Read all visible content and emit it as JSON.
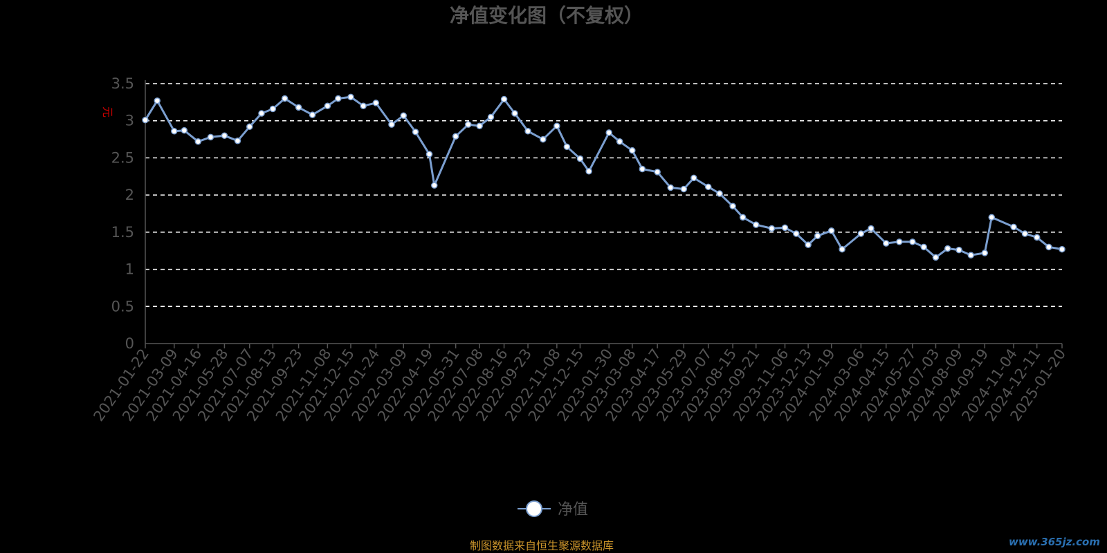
{
  "title": "净值变化图（不复权）",
  "source": "制图数据来自恒生聚源数据库",
  "watermark": "www.365jz.com",
  "colors": {
    "line": "#7b9fd0",
    "grid": "#ffffff",
    "axis": "#555555",
    "unit": "#cc0000",
    "source": "#c8922a"
  },
  "chart_data": {
    "type": "line",
    "title": "净值变化图（不复权）",
    "ylabel": "元",
    "ylim": [
      0,
      3.5
    ],
    "y_ticks": [
      "0",
      "0.5",
      "1",
      "1.5",
      "2",
      "2.5",
      "3",
      "3.5"
    ],
    "grid": true,
    "legend": "bottom-center",
    "x_ticks": [
      "2021-01-22",
      "2021-03-09",
      "2021-04-16",
      "2021-05-28",
      "2021-07-07",
      "2021-08-13",
      "2021-09-23",
      "2021-11-08",
      "2021-12-15",
      "2022-01-24",
      "2022-03-09",
      "2022-04-19",
      "2022-05-31",
      "2022-07-08",
      "2022-08-16",
      "2022-09-23",
      "2022-11-08",
      "2022-12-15",
      "2023-01-30",
      "2023-03-08",
      "2023-04-17",
      "2023-05-29",
      "2023-07-07",
      "2023-08-15",
      "2023-09-21",
      "2023-11-06",
      "2023-12-13",
      "2024-01-19",
      "2024-03-06",
      "2024-04-15",
      "2024-05-27",
      "2024-07-03",
      "2024-08-09",
      "2024-09-19",
      "2024-11-04",
      "2024-12-11",
      "2025-01-20"
    ],
    "series": [
      {
        "name": "净值",
        "x": [
          "2021-01-22",
          "2021-02-10",
          "2021-03-09",
          "2021-03-25",
          "2021-04-16",
          "2021-05-06",
          "2021-05-28",
          "2021-06-18",
          "2021-07-07",
          "2021-07-26",
          "2021-08-13",
          "2021-09-01",
          "2021-09-23",
          "2021-10-15",
          "2021-11-08",
          "2021-11-25",
          "2021-12-15",
          "2022-01-04",
          "2022-01-24",
          "2022-02-18",
          "2022-03-09",
          "2022-03-28",
          "2022-04-19",
          "2022-04-27",
          "2022-05-31",
          "2022-06-20",
          "2022-07-08",
          "2022-07-26",
          "2022-08-16",
          "2022-09-02",
          "2022-09-23",
          "2022-10-17",
          "2022-11-08",
          "2022-11-24",
          "2022-12-15",
          "2022-12-29",
          "2023-01-30",
          "2023-02-16",
          "2023-03-08",
          "2023-03-24",
          "2023-04-17",
          "2023-05-08",
          "2023-05-29",
          "2023-06-14",
          "2023-07-07",
          "2023-07-25",
          "2023-08-15",
          "2023-08-31",
          "2023-09-21",
          "2023-10-16",
          "2023-11-06",
          "2023-11-24",
          "2023-12-13",
          "2023-12-28",
          "2024-01-19",
          "2024-02-05",
          "2024-03-06",
          "2024-03-22",
          "2024-04-15",
          "2024-05-06",
          "2024-05-27",
          "2024-06-14",
          "2024-07-03",
          "2024-07-22",
          "2024-08-09",
          "2024-08-28",
          "2024-09-19",
          "2024-09-30",
          "2024-11-04",
          "2024-11-22",
          "2024-12-11",
          "2024-12-30",
          "2025-01-20"
        ],
        "values": [
          3.01,
          3.27,
          2.86,
          2.87,
          2.72,
          2.78,
          2.8,
          2.73,
          2.92,
          3.1,
          3.16,
          3.3,
          3.18,
          3.08,
          3.2,
          3.3,
          3.32,
          3.2,
          3.24,
          2.95,
          3.07,
          2.85,
          2.55,
          2.13,
          2.79,
          2.95,
          2.93,
          3.05,
          3.29,
          3.1,
          2.86,
          2.75,
          2.93,
          2.65,
          2.49,
          2.32,
          2.84,
          2.72,
          2.6,
          2.35,
          2.31,
          2.1,
          2.08,
          2.23,
          2.11,
          2.02,
          1.85,
          1.7,
          1.6,
          1.55,
          1.56,
          1.48,
          1.33,
          1.45,
          1.52,
          1.27,
          1.48,
          1.55,
          1.35,
          1.37,
          1.37,
          1.3,
          1.16,
          1.28,
          1.26,
          1.19,
          1.22,
          1.7,
          1.57,
          1.48,
          1.43,
          1.3,
          1.27
        ]
      }
    ]
  }
}
